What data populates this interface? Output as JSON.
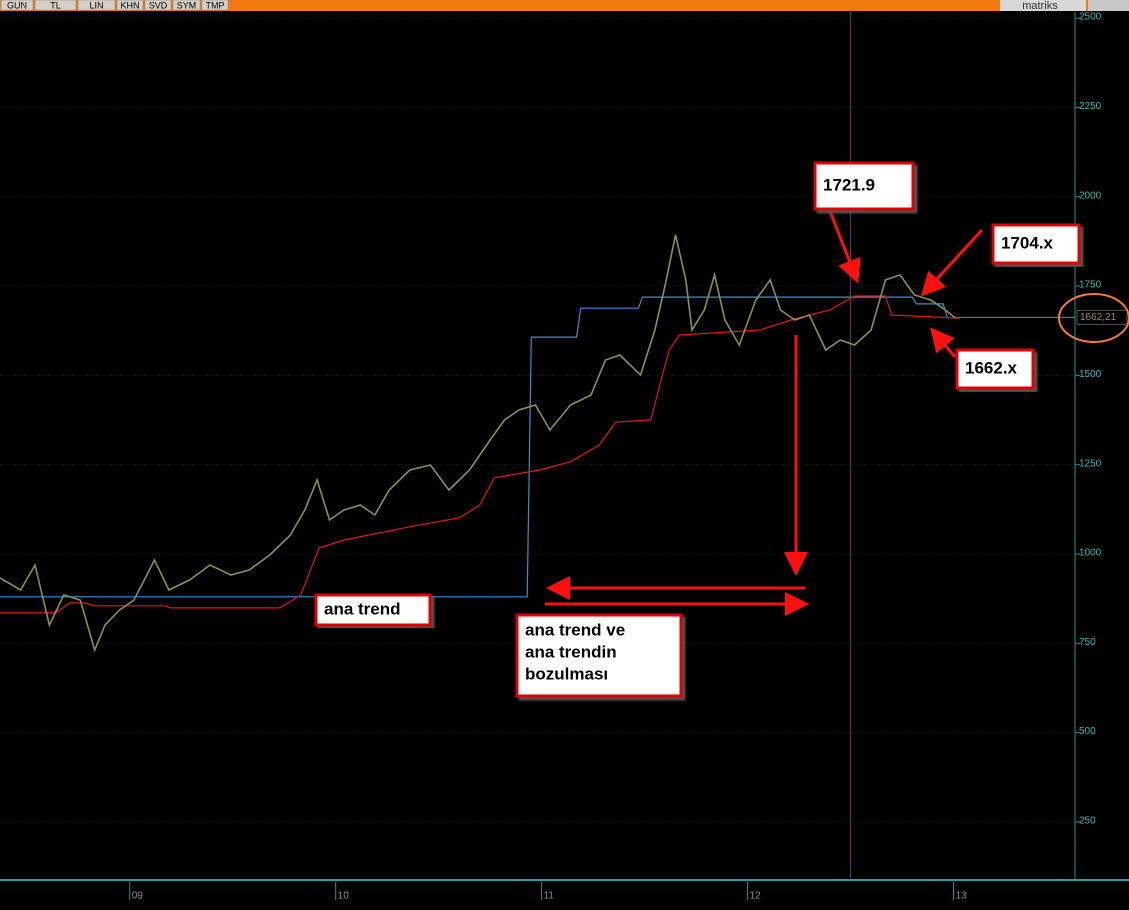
{
  "toolbar": [
    "GUN",
    "TL",
    "LIN",
    "KHN",
    "SVD",
    "SYM",
    "TMP"
  ],
  "brand": "matriks",
  "chart_data": {
    "type": "line",
    "xlim": [
      2008.37,
      2013.59
    ],
    "ylim": [
      93,
      2517
    ],
    "xticks": [
      {
        "value": 2009,
        "label": "09"
      },
      {
        "value": 2010,
        "label": "10"
      },
      {
        "value": 2011,
        "label": "11"
      },
      {
        "value": 2012,
        "label": "12"
      },
      {
        "value": 2013,
        "label": "13"
      }
    ],
    "yticks": [
      250,
      500,
      750,
      1000,
      1250,
      1500,
      1750,
      2000,
      2250,
      2500
    ],
    "grid": true,
    "series": [
      {
        "color": "#8f8f4f",
        "x": [
          2008.37,
          2008.47,
          2008.54,
          2008.61,
          2008.68,
          2008.76,
          2008.83,
          2008.88,
          2008.95,
          2009.02,
          2009.12,
          2009.19,
          2009.29,
          2009.39,
          2009.49,
          2009.58,
          2009.68,
          2009.78,
          2009.85,
          2009.91,
          2009.97,
          2010.04,
          2010.12,
          2010.19,
          2010.26,
          2010.36,
          2010.46,
          2010.55,
          2010.65,
          2010.75,
          2010.82,
          2010.89,
          2010.97,
          2011.04,
          2011.14,
          2011.24,
          2011.31,
          2011.38,
          2011.48,
          2011.55,
          2011.6,
          2011.65,
          2011.7,
          2011.73,
          2011.79,
          2011.84,
          2011.89,
          2011.96,
          2012.04,
          2012.11,
          2012.16,
          2012.23,
          2012.3,
          2012.38,
          2012.45,
          2012.52,
          2012.6,
          2012.67,
          2012.74,
          2012.81,
          2012.89,
          2012.96,
          2013.01
        ],
        "values": [
          933,
          899,
          969,
          801,
          885,
          871,
          731,
          801,
          843,
          871,
          983,
          899,
          927,
          969,
          941,
          955,
          997,
          1053,
          1123,
          1207,
          1095,
          1123,
          1137,
          1109,
          1179,
          1235,
          1249,
          1179,
          1235,
          1319,
          1375,
          1403,
          1417,
          1347,
          1417,
          1445,
          1543,
          1557,
          1501,
          1627,
          1753,
          1893,
          1767,
          1627,
          1683,
          1781,
          1655,
          1585,
          1711,
          1767,
          1683,
          1655,
          1669,
          1571,
          1599,
          1585,
          1627,
          1767,
          1781,
          1725,
          1711,
          1683,
          1660
        ]
      },
      {
        "color": "#3a8fd0",
        "x": [
          2008.37,
          2010.93,
          2010.95,
          2011.17,
          2011.19,
          2011.47,
          2011.49,
          2012.8,
          2012.82,
          2012.95,
          2012.97
        ],
        "values": [
          880,
          880,
          1607,
          1607,
          1688,
          1688,
          1719,
          1719,
          1700,
          1700,
          1662
        ]
      },
      {
        "color": "#e01818",
        "x": [
          2008.37,
          2008.64,
          2008.71,
          2008.78,
          2008.83,
          2009.17,
          2009.2,
          2009.73,
          2009.83,
          2009.92,
          2010.04,
          2010.36,
          2010.6,
          2010.7,
          2010.77,
          2010.99,
          2011.14,
          2011.28,
          2011.36,
          2011.53,
          2011.58,
          2011.62,
          2011.67,
          2012.06,
          2012.21,
          2012.4,
          2012.52,
          2012.67,
          2012.7,
          2013.03
        ],
        "values": [
          835,
          835,
          863,
          863,
          855,
          855,
          849,
          849,
          885,
          1017,
          1039,
          1076,
          1101,
          1137,
          1213,
          1235,
          1258,
          1305,
          1369,
          1375,
          1487,
          1571,
          1613,
          1627,
          1655,
          1683,
          1722,
          1722,
          1669,
          1660
        ]
      }
    ],
    "last_value": {
      "value": 1662.21,
      "label": "1662,21"
    },
    "last_value_color": "#3cb43c",
    "cursor_x": 2012.5,
    "annotations": [
      {
        "lines": [
          "1721.9"
        ]
      },
      {
        "lines": [
          "1704.x"
        ]
      },
      {
        "lines": [
          "1662.x"
        ]
      },
      {
        "lines": [
          "ana trend"
        ]
      },
      {
        "lines": [
          "ana trend ve",
          "ana trendin",
          "bozulması"
        ]
      }
    ]
  }
}
